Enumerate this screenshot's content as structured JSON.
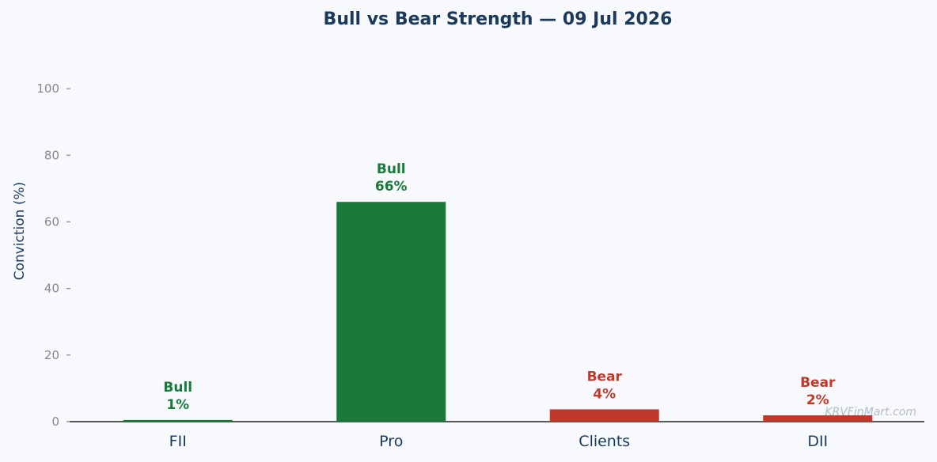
{
  "chart_data": {
    "type": "bar",
    "title": "Bull vs Bear Strength — 09 Jul 2026",
    "xlabel": "",
    "ylabel": "Conviction (%)",
    "ylim": [
      0,
      110
    ],
    "yticks": [
      0,
      20,
      40,
      60,
      80,
      100
    ],
    "grid": false,
    "categories": [
      "FII",
      "Pro",
      "Clients",
      "DII"
    ],
    "values": [
      0.5,
      66,
      3.7,
      1.9
    ],
    "stances": [
      "Bull",
      "Bull",
      "Bear",
      "Bear"
    ],
    "value_labels": [
      "1%",
      "66%",
      "4%",
      "2%"
    ],
    "colors": {
      "Bull": "#1a7a3c",
      "Bear": "#c0392b"
    }
  },
  "watermark": "KRVFinMart.com"
}
